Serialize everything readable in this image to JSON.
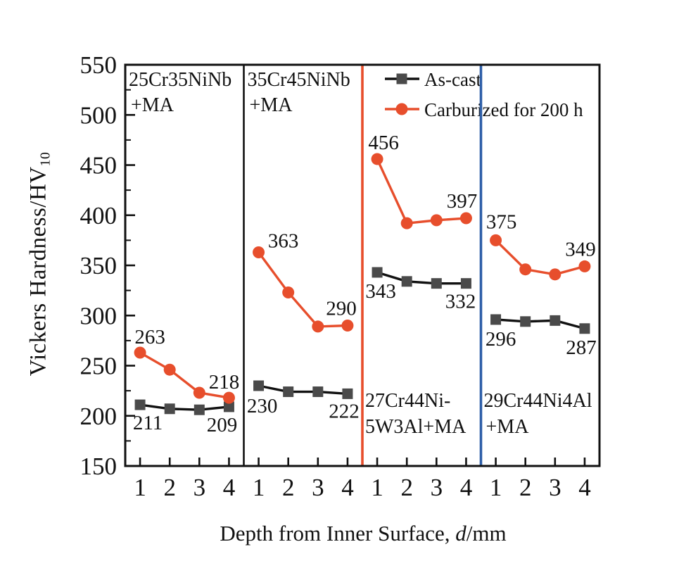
{
  "chart_data": {
    "type": "line",
    "title": "",
    "xlabel": {
      "prefix": "Depth from Inner Surface, ",
      "variable": "d",
      "suffix": "/mm"
    },
    "ylabel": {
      "main": "Vickers Hardness/HV",
      "subscript": "10"
    },
    "ylim": [
      150,
      550
    ],
    "y_major_ticks": [
      150,
      200,
      250,
      300,
      350,
      400,
      450,
      500,
      550
    ],
    "y_minor_step": 25,
    "x_tick_labels": [
      "1",
      "2",
      "3",
      "4"
    ],
    "grid": "off",
    "axis_color": "#111111",
    "legend": {
      "position": "top-inside",
      "entries": [
        {
          "name": "As-cast",
          "marker": "square",
          "color": "#111111",
          "marker_fill": "#4a4a4a"
        },
        {
          "name": "Carburized for 200 h",
          "marker": "circle",
          "color": "#e74e2c",
          "marker_fill": "#e74e2c"
        }
      ]
    },
    "panel_dividers": [
      "#111111",
      "#e74e2c",
      "#2e5fa8"
    ],
    "value_label_points": "first_and_last",
    "panels": [
      {
        "label_lines": [
          "25Cr35NiNb",
          "+MA"
        ],
        "label_position": "top",
        "series": [
          {
            "name": "As-cast",
            "values": [
              211,
              207,
              206,
              209
            ]
          },
          {
            "name": "Carburized for 200 h",
            "values": [
              263,
              246,
              223,
              218
            ]
          }
        ]
      },
      {
        "label_lines": [
          "35Cr45NiNb",
          "+MA"
        ],
        "label_position": "top",
        "series": [
          {
            "name": "As-cast",
            "values": [
              230,
              224,
              224,
              222
            ]
          },
          {
            "name": "Carburized for 200 h",
            "values": [
              363,
              323,
              289,
              290
            ]
          }
        ]
      },
      {
        "label_lines": [
          "27Cr44Ni-",
          "5W3Al+MA"
        ],
        "label_position": "bottom",
        "series": [
          {
            "name": "As-cast",
            "values": [
              343,
              334,
              332,
              332
            ]
          },
          {
            "name": "Carburized for 200 h",
            "values": [
              456,
              392,
              395,
              397
            ]
          }
        ]
      },
      {
        "label_lines": [
          "29Cr44Ni4Al",
          "+MA"
        ],
        "label_position": "bottom",
        "series": [
          {
            "name": "As-cast",
            "values": [
              296,
              294,
              295,
              287
            ]
          },
          {
            "name": "Carburized for 200 h",
            "values": [
              375,
              346,
              341,
              349
            ]
          }
        ]
      }
    ]
  }
}
